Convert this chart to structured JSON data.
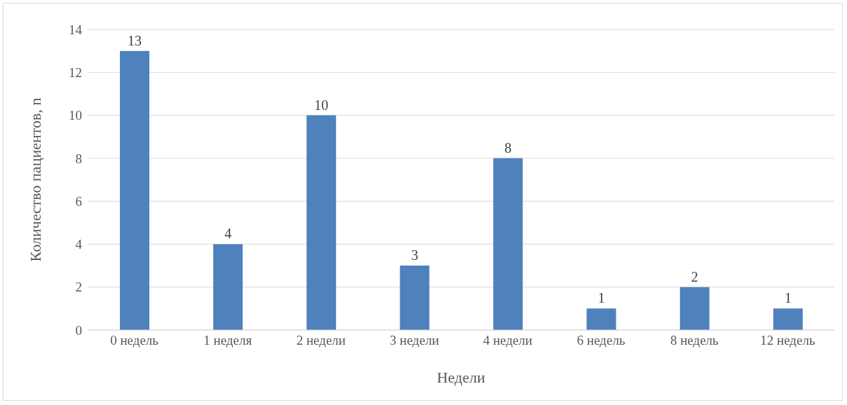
{
  "chart_data": {
    "type": "bar",
    "xlabel": "Недели",
    "ylabel": "Количество пациентов, n",
    "categories": [
      "0 недель",
      "1 неделя",
      "2 недели",
      "3 недели",
      "4 недели",
      "6 недель",
      "8 недель",
      "12 недель"
    ],
    "values": [
      13,
      4,
      10,
      3,
      8,
      1,
      2,
      1
    ],
    "color": "#4f81bd",
    "ylim": [
      0,
      14
    ],
    "yticks": [
      0,
      2,
      4,
      6,
      8,
      10,
      12,
      14
    ],
    "grid": "y",
    "data_labels": true
  }
}
